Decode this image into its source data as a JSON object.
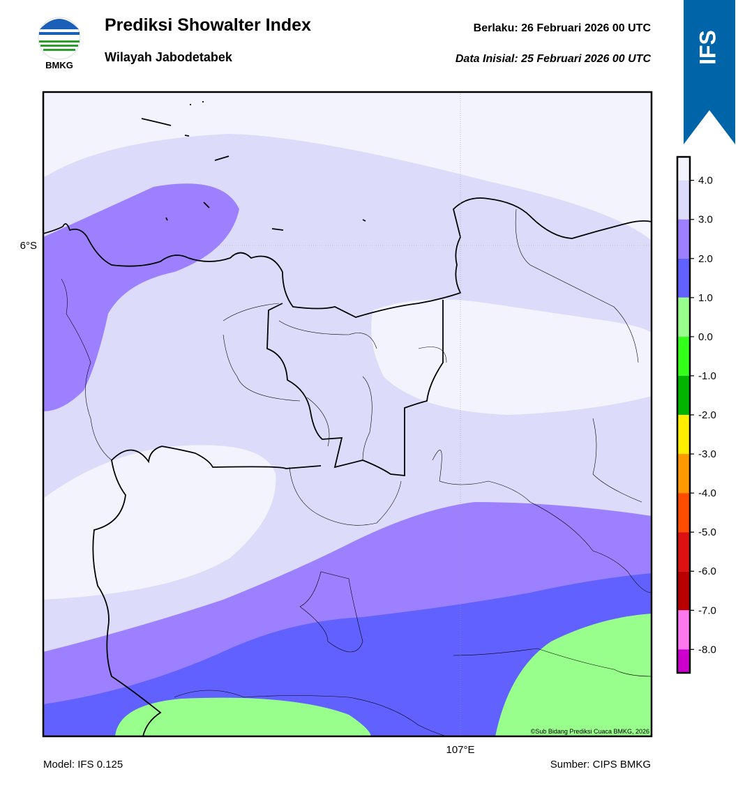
{
  "header": {
    "title": "Prediksi Showalter Index",
    "subtitle": "Wilayah Jabodetabek",
    "valid": "Berlaku:  26 Februari 2026 00 UTC",
    "init": "Data Inisial:  25 Februari 2026 00 UTC",
    "logo": "BMKG",
    "model_badge": "IFS"
  },
  "map": {
    "lat_label": "6°S",
    "lon_label": "107°E",
    "credit": "©Sub Bidang Prediksi Cuaca BMKG, 2026"
  },
  "colorbar": {
    "lim": [
      -8.6,
      4.6
    ],
    "ticks": [
      {
        "value": 4,
        "label": "4.0"
      },
      {
        "value": 3,
        "label": "3.0"
      },
      {
        "value": 2,
        "label": "2.0"
      },
      {
        "value": 1,
        "label": "1.0"
      },
      {
        "value": 0,
        "label": "0.0"
      },
      {
        "value": -1,
        "label": "-1.0"
      },
      {
        "value": -2,
        "label": "-2.0"
      },
      {
        "value": -3,
        "label": "-3.0"
      },
      {
        "value": -4,
        "label": "-4.0"
      },
      {
        "value": -5,
        "label": "-5.0"
      },
      {
        "value": -6,
        "label": "-6.0"
      },
      {
        "value": -7,
        "label": "-7.0"
      },
      {
        "value": -8,
        "label": "-8.0"
      }
    ],
    "colors": [
      "#f3f3fd",
      "#dcdcfa",
      "#9d80ff",
      "#6161ff",
      "#99ff8c",
      "#33ff1a",
      "#00b400",
      "#ffee00",
      "#ff9900",
      "#ff4d00",
      "#dd1111",
      "#b80000",
      "#ff77ee",
      "#cc00cc",
      "#660066"
    ]
  },
  "footer": {
    "model": "Model: IFS 0.125",
    "source": "Sumber: CIPS BMKG"
  }
}
